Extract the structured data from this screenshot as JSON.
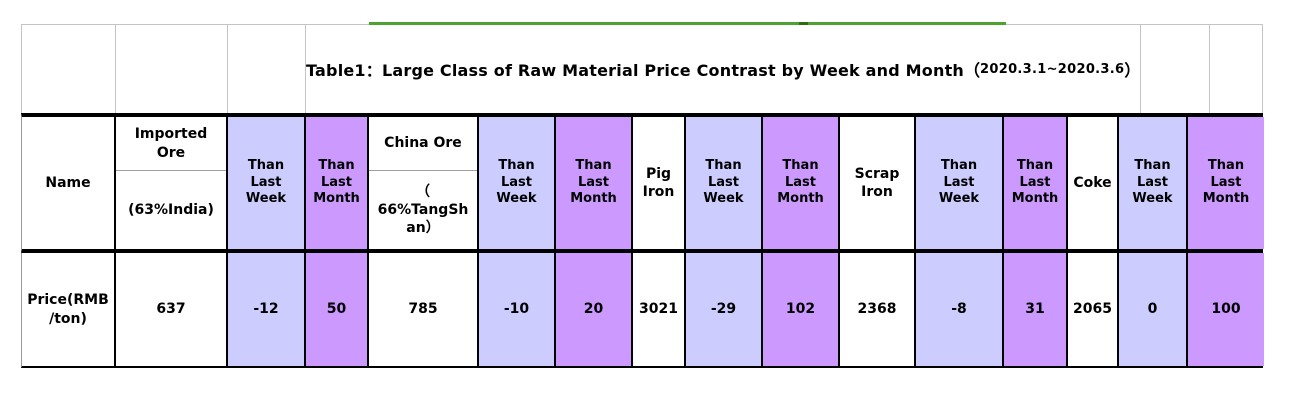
{
  "title": {
    "main": "Table1：Large Class of Raw Material Price Contrast by Week and Month",
    "open_paren": "（",
    "date_range": "2020.3.1~2020.3.6",
    "close_paren": "）"
  },
  "columns": [
    {
      "label": "Name"
    },
    {
      "top": "Imported\nOre",
      "bottom": "(63%India)"
    },
    {
      "label": "Than\nLast\nWeek"
    },
    {
      "label": "Than\nLast\nMonth"
    },
    {
      "top": "China Ore",
      "bottom": "（\n66%TangSh\nan）"
    },
    {
      "label": "Than\nLast\nWeek"
    },
    {
      "label": "Than\nLast\nMonth"
    },
    {
      "label": "Pig\nIron"
    },
    {
      "label": "Than\nLast\nWeek"
    },
    {
      "label": "Than\nLast\nMonth"
    },
    {
      "label": "Scrap\nIron"
    },
    {
      "label": "Than\nLast\nWeek"
    },
    {
      "label": "Than\nLast\nMonth"
    },
    {
      "label": "Coke"
    },
    {
      "label": "Than\nLast\nWeek"
    },
    {
      "label": "Than\nLast\nMonth"
    }
  ],
  "row": {
    "label": "Price(RMB\n/ton)",
    "values": [
      "637",
      "-12",
      "50",
      "785",
      "-10",
      "20",
      "3021",
      "-29",
      "102",
      "2368",
      "-8",
      "31",
      "2065",
      "0",
      "100"
    ]
  },
  "colors": {
    "lavender": "#CCCCFF",
    "purple": "#CC99FF",
    "white": "#FFFFFF",
    "green_line": "#4DA32F",
    "green_line_dark": "#2F6B18"
  }
}
